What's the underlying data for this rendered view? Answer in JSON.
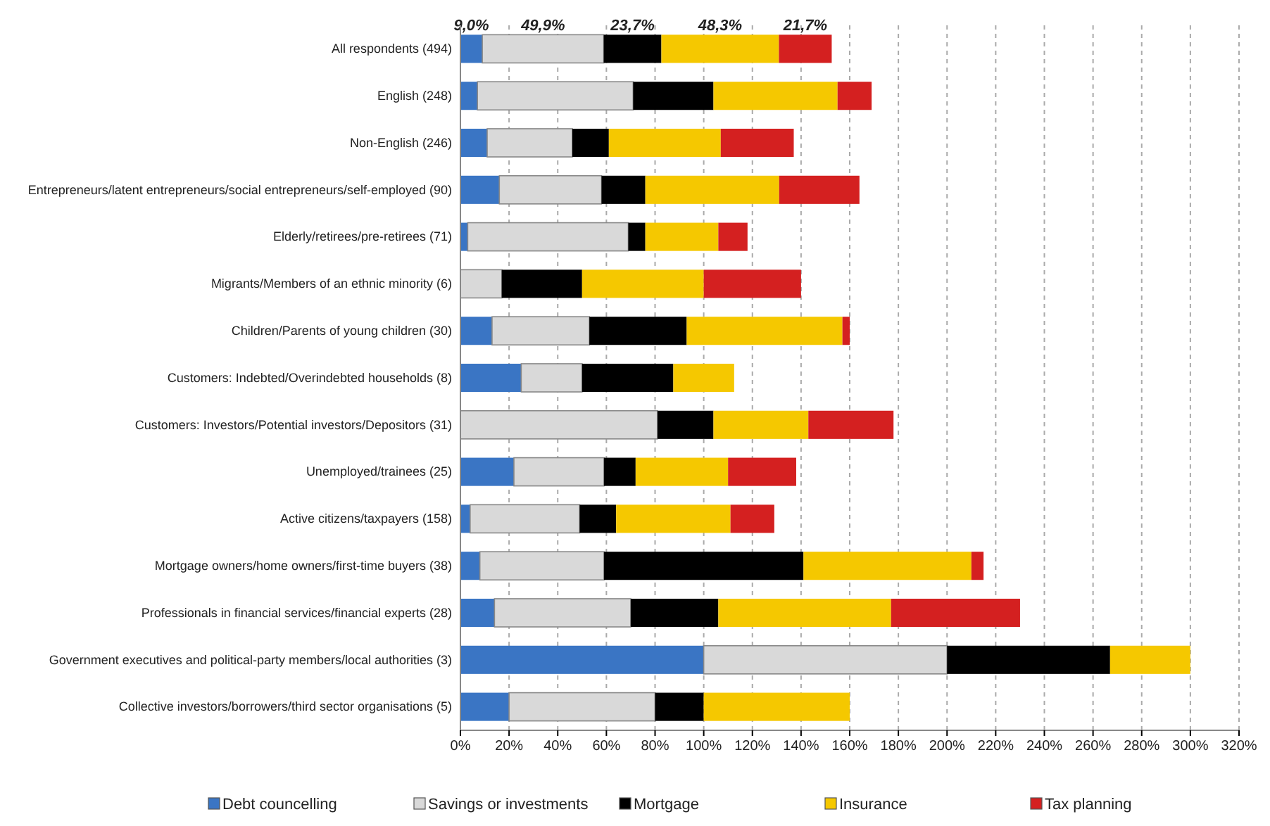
{
  "chart_data": {
    "type": "bar",
    "orientation": "horizontal",
    "stacked": true,
    "categories": [
      "All respondents (494)",
      "English (248)",
      "Non-English (246)",
      "Entrepreneurs/latent entrepreneurs/social entrepreneurs/self-employed (90)",
      "Elderly/retirees/pre-retirees (71)",
      "Migrants/Members of an ethnic minority (6)",
      "Children/Parents of young children (30)",
      "Customers: Indebted/Overindebted households (8)",
      "Customers: Investors/Potential investors/Depositors (31)",
      "Unemployed/trainees (25)",
      "Active citizens/taxpayers (158)",
      "Mortgage owners/home owners/first-time buyers (38)",
      "Professionals in financial services/financial experts (28)",
      "Government executives and political-party members/local authorities (3)",
      "Collective investors/borrowers/third sector organisations (5)"
    ],
    "series": [
      {
        "name": "Debt councelling",
        "color": "#3a75c4",
        "values": [
          9.0,
          7,
          11,
          16,
          3,
          0,
          13,
          25,
          0,
          22,
          4,
          8,
          14,
          100,
          20
        ],
        "value_labels": [
          "9,0%",
          null,
          null,
          null,
          null,
          null,
          null,
          null,
          null,
          null,
          null,
          null,
          null,
          null,
          null
        ]
      },
      {
        "name": "Savings or investments",
        "color": "#d9d9d9",
        "values": [
          49.9,
          64,
          35,
          42,
          66,
          17,
          40,
          25,
          81,
          37,
          45,
          51,
          56,
          100,
          60
        ],
        "value_labels": [
          "49,9%",
          null,
          null,
          null,
          null,
          null,
          null,
          null,
          null,
          null,
          null,
          null,
          null,
          null,
          null
        ]
      },
      {
        "name": "Mortgage",
        "color": "#000000",
        "values": [
          23.7,
          33,
          15,
          18,
          7,
          33,
          40,
          37.5,
          23,
          13,
          15,
          82,
          36,
          67,
          20
        ],
        "value_labels": [
          "23,7%",
          null,
          null,
          null,
          null,
          null,
          null,
          null,
          null,
          null,
          null,
          null,
          null,
          null,
          null
        ]
      },
      {
        "name": "Insurance",
        "color": "#f5c800",
        "values": [
          48.3,
          51,
          46,
          55,
          30,
          50,
          64,
          25,
          39,
          38,
          47,
          69,
          71,
          33,
          60
        ],
        "value_labels": [
          "48,3%",
          null,
          null,
          null,
          null,
          null,
          null,
          null,
          null,
          null,
          null,
          null,
          null,
          null,
          null
        ]
      },
      {
        "name": "Tax planning",
        "color": "#d42020",
        "values": [
          21.7,
          14,
          30,
          33,
          12,
          40,
          3,
          0,
          35,
          28,
          18,
          5,
          53,
          0,
          0
        ],
        "value_labels": [
          "21,7%",
          null,
          null,
          null,
          null,
          null,
          null,
          null,
          null,
          null,
          null,
          null,
          null,
          null,
          null
        ]
      }
    ],
    "xlim": [
      0,
      320
    ],
    "xticks": [
      {
        "value": 0,
        "label": "0%"
      },
      {
        "value": 20,
        "label": "20%"
      },
      {
        "value": 40,
        "label": "40%"
      },
      {
        "value": 60,
        "label": "60%"
      },
      {
        "value": 80,
        "label": "80%"
      },
      {
        "value": 100,
        "label": "100%"
      },
      {
        "value": 120,
        "label": "120%"
      },
      {
        "value": 140,
        "label": "140%"
      },
      {
        "value": 160,
        "label": "160%"
      },
      {
        "value": 180,
        "label": "180%"
      },
      {
        "value": 200,
        "label": "200%"
      },
      {
        "value": 220,
        "label": "220%"
      },
      {
        "value": 240,
        "label": "240%"
      },
      {
        "value": 260,
        "label": "260%"
      },
      {
        "value": 280,
        "label": "280%"
      },
      {
        "value": 300,
        "label": "300%"
      },
      {
        "value": 320,
        "label": "320%"
      }
    ],
    "grid": "x",
    "legend": "bottom"
  }
}
